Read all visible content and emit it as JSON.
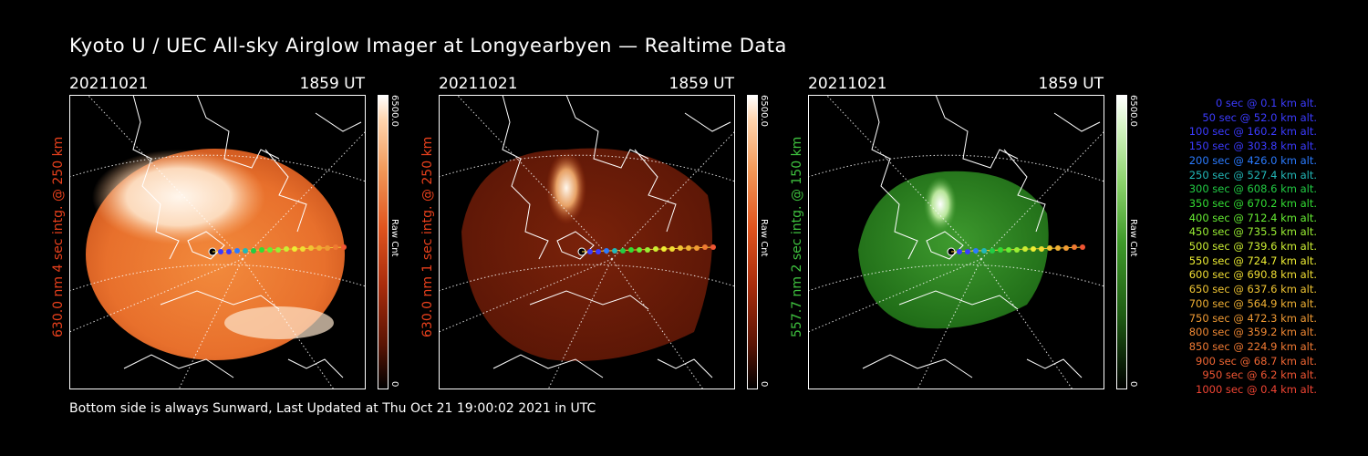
{
  "title": "Kyoto U / UEC All-sky Airglow Imager at Longyearbyen — Realtime Data",
  "footer": "Bottom side is always Sunward, Last Updated at Thu Oct 21 19:00:02 2021 in UTC",
  "colors": {
    "red630": "#e8401c",
    "green557": "#3fc23f",
    "map_lines": "#ffffff"
  },
  "panels": [
    {
      "date": "20211021",
      "time": "1859 UT",
      "ylabel": "630.0 nm  4 sec intg. @ 250 km",
      "cbar_max": "6500.0",
      "cbar_min": "0",
      "cbar_label": "Raw Cnt"
    },
    {
      "date": "20211021",
      "time": "1859 UT",
      "ylabel": "630.0 nm  1 sec intg. @ 250 km",
      "cbar_max": "6500.0",
      "cbar_min": "0",
      "cbar_label": "Raw Cnt"
    },
    {
      "date": "20211021",
      "time": "1859 UT",
      "ylabel": "557.7 nm  2 sec intg. @ 150 km",
      "cbar_max": "6500.0",
      "cbar_min": "0",
      "cbar_label": "Raw Cnt"
    }
  ],
  "legend": [
    {
      "text": "0 sec @   0.1 km alt.",
      "color": "#3b3bff"
    },
    {
      "text": "50 sec @  52.0 km alt.",
      "color": "#3b3bff"
    },
    {
      "text": "100 sec @ 160.2 km alt.",
      "color": "#3b3bff"
    },
    {
      "text": "150 sec @ 303.8 km alt.",
      "color": "#3b3bff"
    },
    {
      "text": "200 sec @ 426.0 km alt.",
      "color": "#2a7bff"
    },
    {
      "text": "250 sec @ 527.4 km alt.",
      "color": "#22b8b8"
    },
    {
      "text": "300 sec @ 608.6 km alt.",
      "color": "#22cc44"
    },
    {
      "text": "350 sec @ 670.2 km alt.",
      "color": "#33dd33"
    },
    {
      "text": "400 sec @ 712.4 km alt.",
      "color": "#66ee33"
    },
    {
      "text": "450 sec @ 735.5 km alt.",
      "color": "#99ee33"
    },
    {
      "text": "500 sec @ 739.6 km alt.",
      "color": "#ccee33"
    },
    {
      "text": "550 sec @ 724.7 km alt.",
      "color": "#eeee33"
    },
    {
      "text": "600 sec @ 690.8 km alt.",
      "color": "#f0dd33"
    },
    {
      "text": "650 sec @ 637.6 km alt.",
      "color": "#f0c533"
    },
    {
      "text": "700 sec @ 564.9 km alt.",
      "color": "#f0b033"
    },
    {
      "text": "750 sec @ 472.3 km alt.",
      "color": "#f09a33"
    },
    {
      "text": "800 sec @ 359.2 km alt.",
      "color": "#f08833"
    },
    {
      "text": "850 sec @ 224.9 km alt.",
      "color": "#f07a33"
    },
    {
      "text": "900 sec @  68.7 km alt.",
      "color": "#f06633"
    },
    {
      "text": "950 sec @   6.2 km alt.",
      "color": "#f05533"
    },
    {
      "text": "1000 sec @   0.4 km alt.",
      "color": "#f04433"
    }
  ]
}
